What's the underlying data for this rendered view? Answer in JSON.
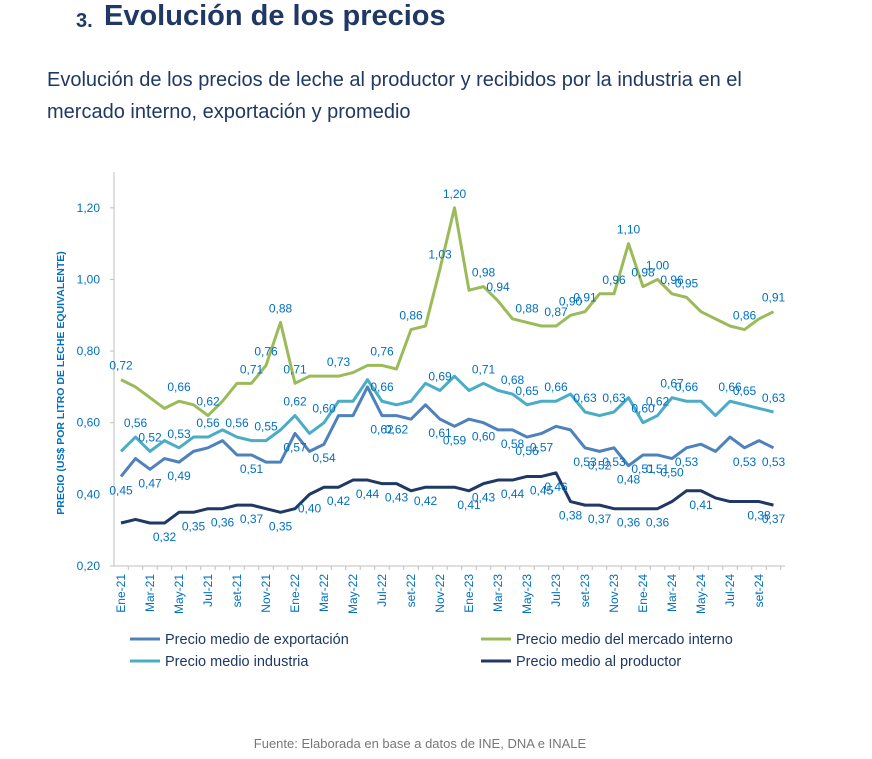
{
  "section": {
    "number": "3.",
    "title": "Evolución de los precios"
  },
  "chart_data": {
    "type": "line",
    "title": "Evolución de los precios de leche al productor y recibidos por la industria en el mercado interno, exportación y promedio",
    "y_label": "PRECIO (US$ POR LITRO DE LECHE EQUIVALENTE)",
    "categories": [
      "Ene-21",
      null,
      "Mar-21",
      null,
      "May-21",
      null,
      "Jul-21",
      null,
      "set-21",
      null,
      "Nov-21",
      null,
      "Ene-22",
      null,
      "Mar-22",
      null,
      "May-22",
      null,
      "Jul-22",
      null,
      "set-22",
      null,
      "Nov-22",
      null,
      "Ene-23",
      null,
      "Mar-23",
      null,
      "May-23",
      null,
      "Jul-23",
      null,
      "set-23",
      null,
      "Nov-23",
      null,
      "Ene-24",
      null,
      "Mar-24",
      null,
      "May-24",
      null,
      "Jul-24",
      null,
      "set-24",
      null
    ],
    "ylim": [
      0.2,
      1.3
    ],
    "yticks": [
      {
        "value": 0.2,
        "label": "0,20"
      },
      {
        "value": 0.4,
        "label": "0,40"
      },
      {
        "value": 0.6,
        "label": "0,60"
      },
      {
        "value": 0.8,
        "label": "0,80"
      },
      {
        "value": 1.0,
        "label": "1,00"
      },
      {
        "value": 1.2,
        "label": "1,20"
      }
    ],
    "series": [
      {
        "name": "Precio medio de exportación",
        "color": "#4f81bd",
        "values": [
          0.45,
          0.5,
          0.47,
          0.5,
          0.49,
          0.52,
          0.53,
          0.55,
          0.51,
          0.51,
          0.49,
          0.49,
          0.57,
          0.52,
          0.54,
          0.62,
          0.62,
          0.7,
          0.62,
          0.62,
          0.61,
          0.65,
          0.61,
          0.59,
          0.61,
          0.6,
          0.58,
          0.58,
          0.56,
          0.57,
          0.59,
          0.58,
          0.53,
          0.52,
          0.53,
          0.48,
          0.51,
          0.51,
          0.5,
          0.53,
          0.54,
          0.52,
          0.56,
          0.53,
          0.55,
          0.53
        ],
        "value_labels": [
          "0,45",
          null,
          "0,47",
          null,
          "0,49",
          null,
          null,
          null,
          null,
          "0,51",
          null,
          null,
          "0,57",
          null,
          "0,54",
          null,
          null,
          null,
          "0,62",
          "0,62",
          null,
          null,
          "0,61",
          "0,59",
          null,
          "0,60",
          null,
          "0,58",
          "0,56",
          "0,57",
          null,
          null,
          "0,53",
          "0,52",
          "0,53",
          "0,48",
          "0,51",
          "0,51",
          "0,50",
          "0,53",
          null,
          null,
          null,
          "0,53",
          null,
          "0,53"
        ]
      },
      {
        "name": "Precio medio del mercado interno",
        "color": "#9bbb59",
        "values": [
          0.72,
          0.7,
          0.67,
          0.64,
          0.66,
          0.65,
          0.62,
          0.66,
          0.71,
          0.71,
          0.76,
          0.88,
          0.71,
          0.73,
          0.73,
          0.73,
          0.74,
          0.76,
          0.76,
          0.75,
          0.86,
          0.87,
          1.03,
          1.2,
          0.97,
          0.98,
          0.94,
          0.89,
          0.88,
          0.87,
          0.87,
          0.9,
          0.91,
          0.96,
          0.96,
          1.1,
          0.98,
          1.0,
          0.96,
          0.95,
          0.91,
          0.89,
          0.87,
          0.86,
          0.89,
          0.91
        ],
        "value_labels": [
          "0,72",
          null,
          null,
          null,
          "0,66",
          null,
          "0,62",
          null,
          null,
          "0,71",
          "0,76",
          "0,88",
          "0,71",
          null,
          null,
          "0,73",
          null,
          null,
          "0,76",
          null,
          "0,86",
          null,
          "1,03",
          "1,20",
          null,
          "0,98",
          "0,94",
          null,
          "0,88",
          null,
          "0,87",
          "0,90",
          "0,91",
          null,
          "0,96",
          "1,10",
          "0,98",
          "1,00",
          "0,96",
          "0,95",
          null,
          null,
          null,
          "0,86",
          null,
          "0,91"
        ]
      },
      {
        "name": "Precio medio industria",
        "color": "#4bacc6",
        "values": [
          0.52,
          0.56,
          0.52,
          0.55,
          0.53,
          0.56,
          0.56,
          0.58,
          0.56,
          0.55,
          0.55,
          0.58,
          0.62,
          0.57,
          0.6,
          0.66,
          0.66,
          0.72,
          0.66,
          0.65,
          0.66,
          0.71,
          0.69,
          0.73,
          0.69,
          0.71,
          0.69,
          0.68,
          0.65,
          0.66,
          0.66,
          0.68,
          0.63,
          0.62,
          0.63,
          0.67,
          0.6,
          0.62,
          0.67,
          0.66,
          0.66,
          0.62,
          0.66,
          0.65,
          0.64,
          0.63
        ],
        "value_labels": [
          null,
          "0,56",
          "0,52",
          null,
          "0,53",
          null,
          "0,56",
          null,
          "0,56",
          null,
          "0,55",
          null,
          "0,62",
          null,
          "0,60",
          null,
          null,
          null,
          "0,66",
          null,
          null,
          null,
          "0,69",
          null,
          null,
          "0,71",
          null,
          "0,68",
          "0,65",
          null,
          "0,66",
          null,
          "0,63",
          null,
          "0,63",
          null,
          "0,60",
          "0,62",
          "0,67",
          "0,66",
          null,
          null,
          "0,66",
          "0,65",
          null,
          "0,63"
        ]
      },
      {
        "name": "Precio medio al productor",
        "color": "#1f3864",
        "values": [
          0.32,
          0.33,
          0.32,
          0.32,
          0.35,
          0.35,
          0.36,
          0.36,
          0.37,
          0.37,
          0.36,
          0.35,
          0.36,
          0.4,
          0.42,
          0.42,
          0.44,
          0.44,
          0.43,
          0.43,
          0.41,
          0.42,
          0.42,
          0.42,
          0.41,
          0.43,
          0.44,
          0.44,
          0.45,
          0.45,
          0.46,
          0.38,
          0.37,
          0.37,
          0.36,
          0.36,
          0.36,
          0.36,
          0.38,
          0.41,
          0.41,
          0.39,
          0.38,
          0.38,
          0.38,
          0.37
        ],
        "value_labels": [
          null,
          null,
          null,
          "0,32",
          null,
          "0,35",
          null,
          "0,36",
          null,
          "0,37",
          null,
          "0,35",
          null,
          "0,40",
          null,
          "0,42",
          null,
          "0,44",
          null,
          "0,43",
          null,
          "0,42",
          null,
          null,
          "0,41",
          "0,43",
          null,
          "0,44",
          null,
          "0,45",
          "0,46",
          "0,38",
          null,
          "0,37",
          null,
          "0,36",
          null,
          "0,36",
          null,
          null,
          "0,41",
          null,
          null,
          null,
          "0,38",
          "0,37"
        ]
      }
    ],
    "source": "Fuente: Elaborada en base a datos de INE, DNA e INALE"
  }
}
